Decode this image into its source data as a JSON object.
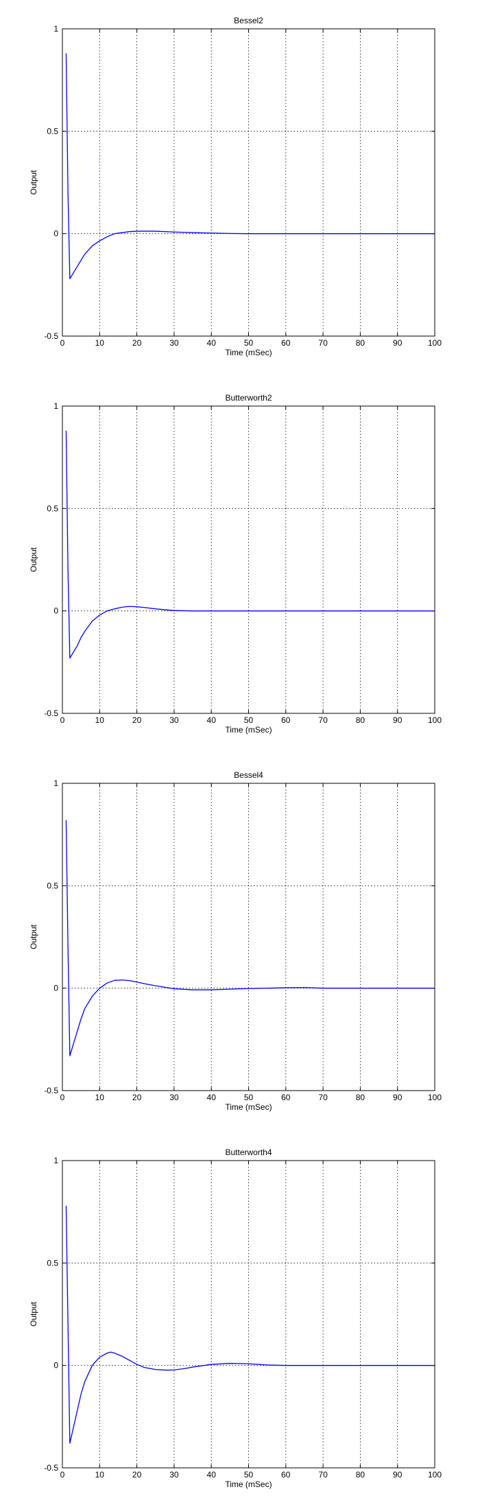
{
  "chart_data": [
    {
      "type": "line",
      "title": "Bessel2",
      "xlabel": "Time (mSec)",
      "ylabel": "Output",
      "xlim": [
        0,
        100
      ],
      "ylim": [
        -0.5,
        1
      ],
      "xticks": [
        "0",
        "10",
        "20",
        "30",
        "40",
        "50",
        "60",
        "70",
        "80",
        "90",
        "100"
      ],
      "yticks": [
        "-0.5",
        "0",
        "0.5",
        "1"
      ],
      "grid": true,
      "series": [
        {
          "color": "#0000ff",
          "x": [
            1,
            1.5,
            2,
            3,
            4,
            5,
            6,
            8,
            10,
            12,
            14,
            16,
            18,
            20,
            25,
            30,
            35,
            40,
            45,
            50,
            60,
            70,
            80,
            90,
            100
          ],
          "y": [
            0.88,
            0.2,
            -0.22,
            -0.19,
            -0.16,
            -0.13,
            -0.1,
            -0.06,
            -0.035,
            -0.015,
            0.0,
            0.005,
            0.01,
            0.012,
            0.012,
            0.008,
            0.005,
            0.003,
            0.001,
            0.0,
            0.0,
            0.0,
            0.0,
            0.0,
            0.0
          ]
        }
      ]
    },
    {
      "type": "line",
      "title": "Butterworth2",
      "xlabel": "Time (mSec)",
      "ylabel": "Output",
      "xlim": [
        0,
        100
      ],
      "ylim": [
        -0.5,
        1
      ],
      "xticks": [
        "0",
        "10",
        "20",
        "30",
        "40",
        "50",
        "60",
        "70",
        "80",
        "90",
        "100"
      ],
      "yticks": [
        "-0.5",
        "0",
        "0.5",
        "1"
      ],
      "grid": true,
      "series": [
        {
          "color": "#0000ff",
          "x": [
            1,
            1.5,
            2,
            3,
            4,
            5,
            6,
            8,
            10,
            12,
            14,
            16,
            18,
            20,
            22,
            25,
            28,
            30,
            35,
            40,
            50,
            60,
            70,
            80,
            90,
            100
          ],
          "y": [
            0.88,
            0.2,
            -0.23,
            -0.2,
            -0.17,
            -0.13,
            -0.1,
            -0.05,
            -0.02,
            0.0,
            0.01,
            0.018,
            0.022,
            0.02,
            0.017,
            0.01,
            0.005,
            0.002,
            0.0,
            0.0,
            0.0,
            0.0,
            0.0,
            0.0,
            0.0,
            0.0
          ]
        }
      ]
    },
    {
      "type": "line",
      "title": "Bessel4",
      "xlabel": "Time (mSec)",
      "ylabel": "Output",
      "xlim": [
        0,
        100
      ],
      "ylim": [
        -0.5,
        1
      ],
      "xticks": [
        "0",
        "10",
        "20",
        "30",
        "40",
        "50",
        "60",
        "70",
        "80",
        "90",
        "100"
      ],
      "yticks": [
        "-0.5",
        "0",
        "0.5",
        "1"
      ],
      "grid": true,
      "series": [
        {
          "color": "#0000ff",
          "x": [
            1,
            1.5,
            2,
            3,
            4,
            5,
            6,
            8,
            10,
            12,
            14,
            16,
            18,
            20,
            22,
            25,
            28,
            30,
            35,
            40,
            45,
            50,
            55,
            60,
            65,
            70,
            80,
            90,
            100
          ],
          "y": [
            0.82,
            0.2,
            -0.33,
            -0.27,
            -0.21,
            -0.15,
            -0.1,
            -0.04,
            0.0,
            0.025,
            0.038,
            0.04,
            0.037,
            0.03,
            0.022,
            0.012,
            0.003,
            -0.003,
            -0.008,
            -0.008,
            -0.005,
            -0.002,
            0.0,
            0.002,
            0.003,
            0.0,
            0.0,
            0.0,
            0.0
          ]
        }
      ]
    },
    {
      "type": "line",
      "title": "Butterworth4",
      "xlabel": "Time (mSec)",
      "ylabel": "Output",
      "xlim": [
        0,
        100
      ],
      "ylim": [
        -0.5,
        1
      ],
      "xticks": [
        "0",
        "10",
        "20",
        "30",
        "40",
        "50",
        "60",
        "70",
        "80",
        "90",
        "100"
      ],
      "yticks": [
        "-0.5",
        "0",
        "0.5",
        "1"
      ],
      "grid": true,
      "series": [
        {
          "color": "#0000ff",
          "x": [
            1,
            1.5,
            2,
            3,
            4,
            5,
            6,
            8,
            10,
            12,
            13,
            14,
            16,
            18,
            20,
            22,
            25,
            28,
            30,
            33,
            35,
            40,
            45,
            50,
            55,
            60,
            70,
            80,
            90,
            100
          ],
          "y": [
            0.78,
            0.2,
            -0.38,
            -0.3,
            -0.22,
            -0.14,
            -0.08,
            0.0,
            0.04,
            0.06,
            0.065,
            0.06,
            0.045,
            0.025,
            0.005,
            -0.01,
            -0.02,
            -0.023,
            -0.022,
            -0.015,
            -0.008,
            0.005,
            0.01,
            0.008,
            0.002,
            0.0,
            0.0,
            0.0,
            0.0,
            0.0
          ]
        }
      ]
    }
  ]
}
